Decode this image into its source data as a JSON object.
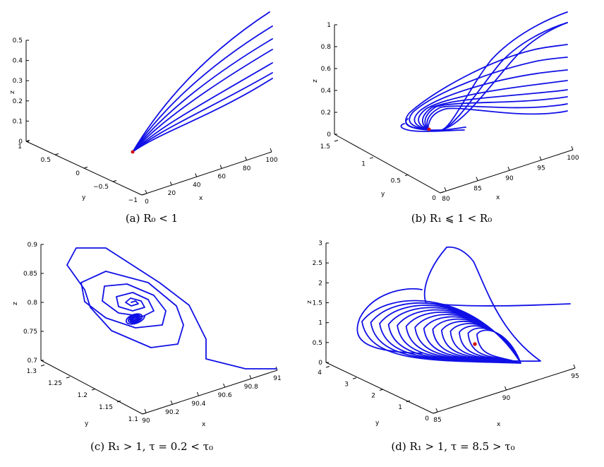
{
  "chart_data": [
    {
      "id": "a",
      "type": "line",
      "caption": "(a) R₀ < 1",
      "xlabel": "x",
      "ylabel": "y",
      "zlabel": "z",
      "xticks": [
        "0",
        "20",
        "40",
        "60",
        "80",
        "100"
      ],
      "yticks": [
        "−1",
        "−0.5",
        "0",
        "0.5",
        "1"
      ],
      "zticks": [
        "0",
        "0.1",
        "0.2",
        "0.3",
        "0.4",
        "0.5"
      ],
      "xlim": [
        0,
        100
      ],
      "ylim": [
        -1,
        1
      ],
      "zlim": [
        0,
        0.5
      ],
      "series_description": "seven trajectories from high z converging to the disease-free equilibrium",
      "equilibrium": [
        100,
        0,
        0
      ]
    },
    {
      "id": "b",
      "type": "line",
      "caption": "(b) R₁ ⩽ 1 < R₀",
      "xlabel": "x",
      "ylabel": "y",
      "zlabel": "z",
      "xticks": [
        "80",
        "85",
        "90",
        "95",
        "100"
      ],
      "yticks": [
        "0",
        "0.5",
        "1",
        "1.5"
      ],
      "zticks": [
        "0",
        "0.2",
        "0.4",
        "0.6",
        "0.8",
        "1"
      ],
      "xlim": [
        80,
        100
      ],
      "ylim": [
        0,
        1.5
      ],
      "zlim": [
        0,
        1
      ]
    },
    {
      "id": "c",
      "type": "line",
      "caption": "(c) R₁ > 1, τ = 0.2 < τ₀",
      "xlabel": "x",
      "ylabel": "y",
      "zlabel": "z",
      "xticks": [
        "90",
        "90.2",
        "90.4",
        "90.6",
        "90.8",
        "91"
      ],
      "yticks": [
        "1.1",
        "1.15",
        "1.2",
        "1.25",
        "1.3"
      ],
      "zticks": [
        "0.7",
        "0.75",
        "0.8",
        "0.85",
        "0.9"
      ],
      "xlim": [
        90,
        91
      ],
      "ylim": [
        1.1,
        1.3
      ],
      "zlim": [
        0.7,
        0.9
      ]
    },
    {
      "id": "d",
      "type": "line",
      "caption": "(d) R₁ > 1, τ = 8.5 > τ₀",
      "xlabel": "x",
      "ylabel": "y",
      "zlabel": "z",
      "xticks": [
        "85",
        "90",
        "95"
      ],
      "yticks": [
        "0",
        "1",
        "2",
        "3",
        "4"
      ],
      "zticks": [
        "0",
        "0.5",
        "1",
        "1.5",
        "2",
        "2.5",
        "3"
      ],
      "xlim": [
        85,
        95
      ],
      "ylim": [
        0,
        4
      ],
      "zlim": [
        0,
        3
      ]
    }
  ],
  "colors": {
    "trajectory": "#1010e6",
    "equilibrium": "#d01010",
    "axes": "#000000"
  }
}
